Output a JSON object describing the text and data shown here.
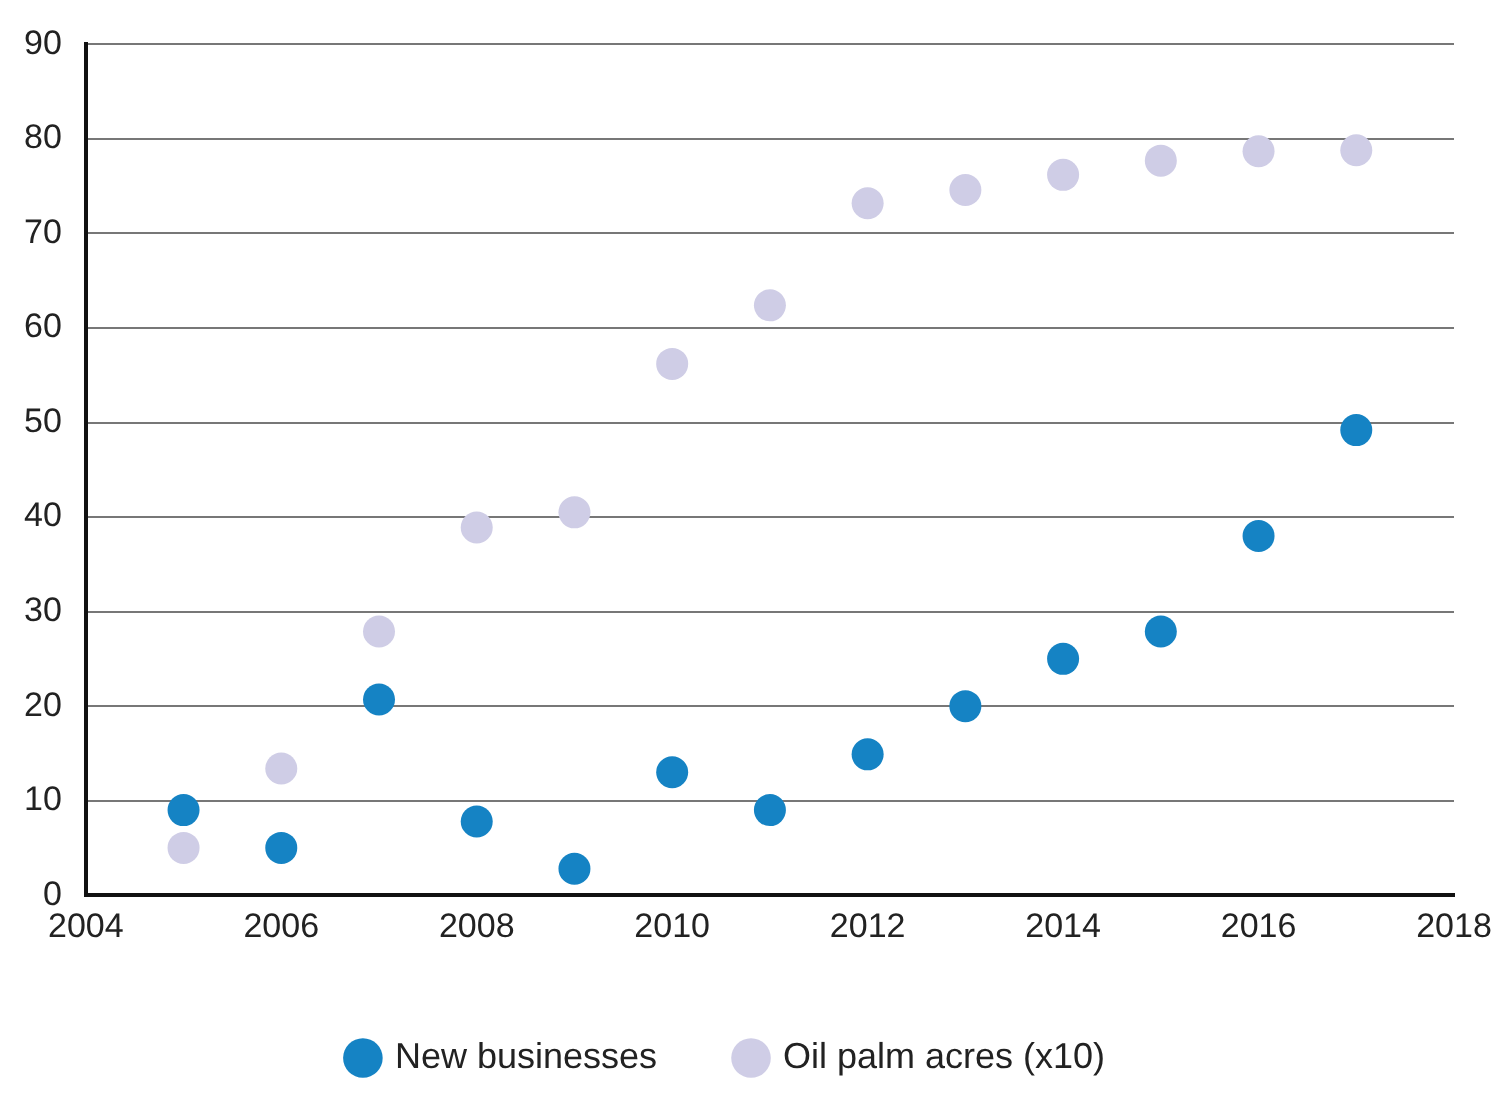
{
  "chart_data": {
    "type": "scatter",
    "x": [
      2005,
      2006,
      2007,
      2008,
      2009,
      2010,
      2011,
      2012,
      2013,
      2014,
      2015,
      2016,
      2017
    ],
    "series": [
      {
        "name": "New businesses",
        "color": "#1583c4",
        "values": [
          9,
          5,
          20.7,
          7.8,
          2.8,
          13,
          9,
          14.9,
          20,
          25,
          27.9,
          38,
          49.2
        ]
      },
      {
        "name": "Oil palm acres (x10)",
        "color": "#cfcde6",
        "values": [
          5,
          13.4,
          27.9,
          38.9,
          40.5,
          56.2,
          62.4,
          73.2,
          74.6,
          76.2,
          77.7,
          78.7,
          78.8
        ]
      }
    ],
    "xlim": [
      2004,
      2018
    ],
    "xticks": [
      2004,
      2006,
      2008,
      2010,
      2012,
      2014,
      2016,
      2018
    ],
    "ylim": [
      0,
      90
    ],
    "yticks": [
      0,
      10,
      20,
      30,
      40,
      50,
      60,
      70,
      80,
      90
    ],
    "grid": "y",
    "legend": "bottom",
    "marker": "circle"
  }
}
